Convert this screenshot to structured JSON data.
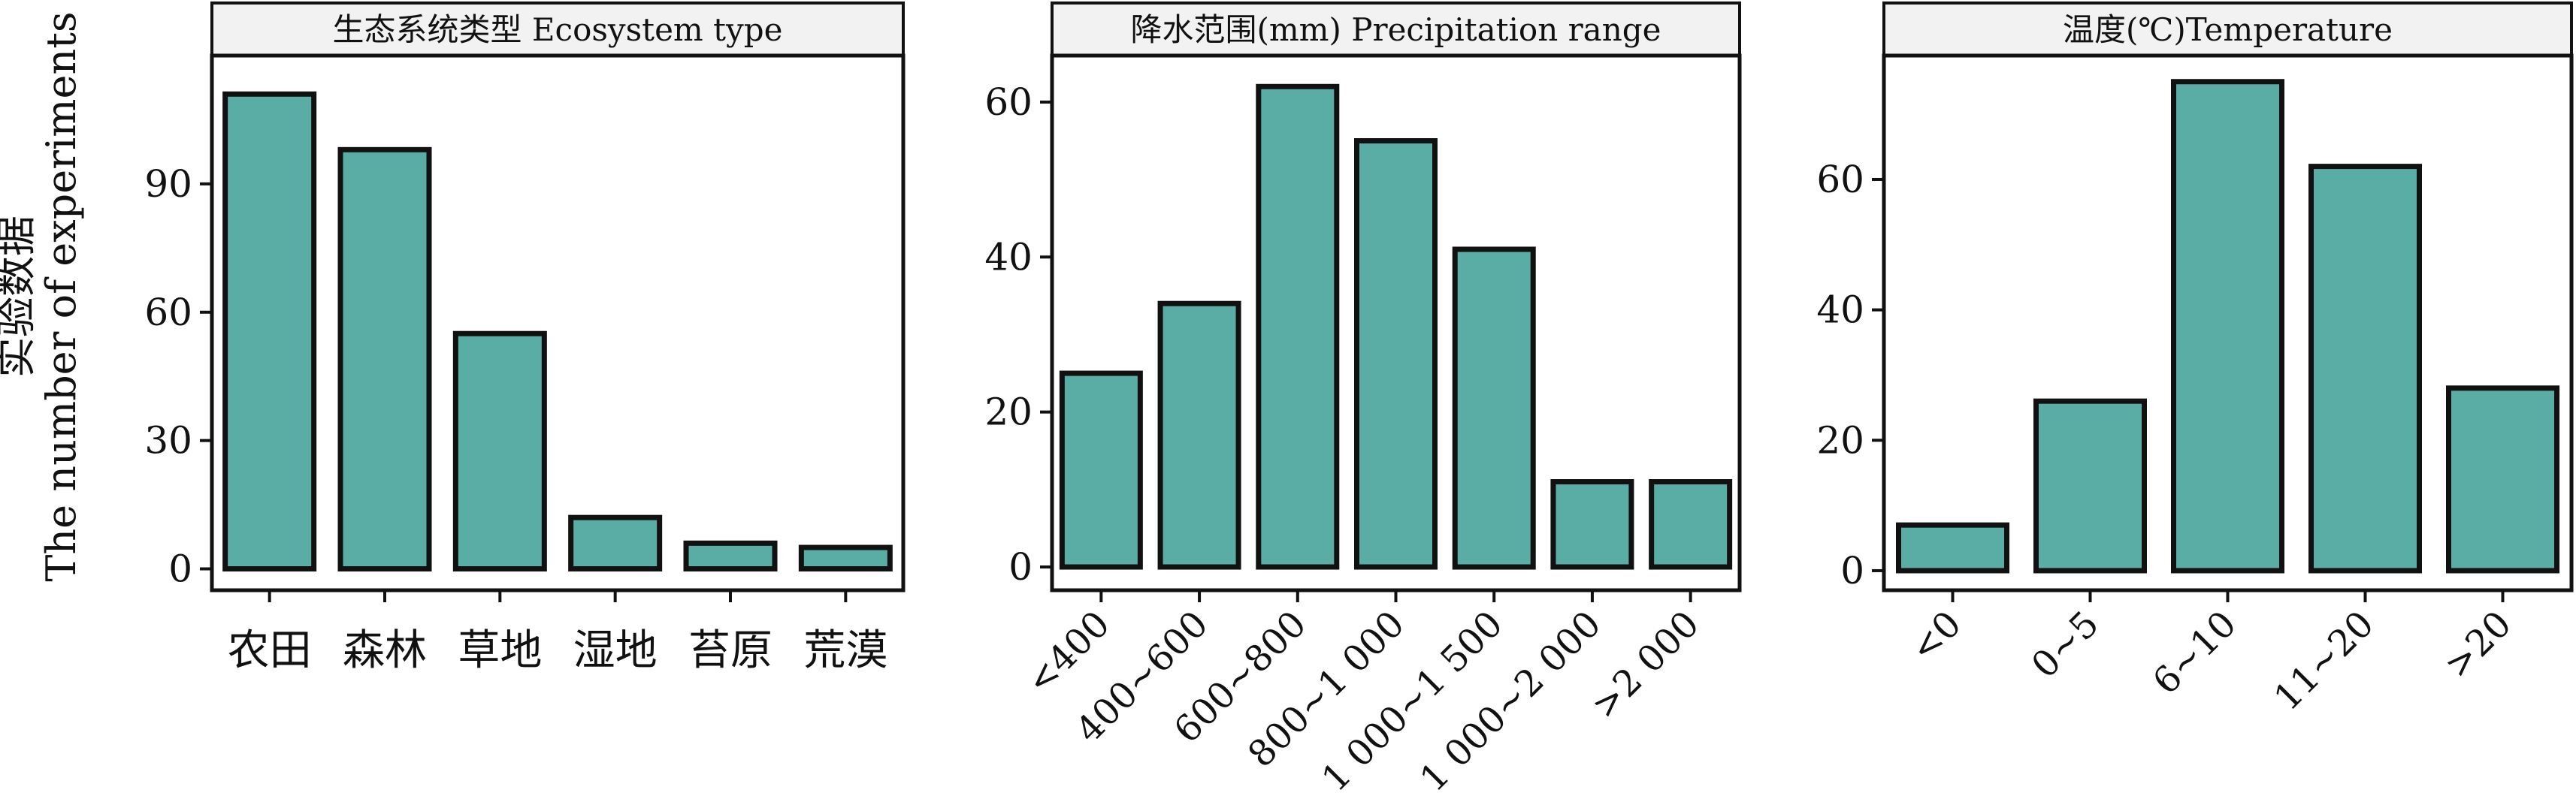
{
  "y_axis_label": {
    "zh": "实验数据",
    "en": "The number of experiments"
  },
  "colors": {
    "bar_fill": "#5aada5",
    "bar_stroke": "#111111",
    "header_fill": "#f2f2f2",
    "axis": "#111111"
  },
  "chart_data": [
    {
      "type": "bar",
      "title": "生态系统类型 Ecosystem type",
      "xlabel": "",
      "ylabel": "实验数据 The number of experiments",
      "categories": [
        "农田",
        "森林",
        "草地",
        "湿地",
        "苔原",
        "荒漠"
      ],
      "values": [
        111,
        98,
        55,
        12,
        6,
        5
      ],
      "ylim": [
        -5,
        120
      ],
      "yticks": [
        0,
        30,
        60,
        90
      ],
      "ytick_labels": [
        "0",
        "30",
        "60",
        "90"
      ],
      "xtick_rotation": 0
    },
    {
      "type": "bar",
      "title": "降水范围(mm) Precipitation range",
      "xlabel": "",
      "ylabel": "",
      "categories": [
        "<400",
        "400~600",
        "600~800",
        "800~1 000",
        "1 000~1 500",
        "1 000~2 000",
        ">2 000"
      ],
      "values": [
        25,
        34,
        62,
        55,
        41,
        11,
        11
      ],
      "ylim": [
        -3,
        66
      ],
      "yticks": [
        0,
        20,
        40,
        60
      ],
      "ytick_labels": [
        "0",
        "20",
        "40",
        "60"
      ],
      "xtick_rotation": -45
    },
    {
      "type": "bar",
      "title": "温度(℃)Temperature",
      "xlabel": "",
      "ylabel": "",
      "categories": [
        "<0",
        "0~5",
        "6~10",
        "11~20",
        ">20"
      ],
      "values": [
        7,
        26,
        75,
        62,
        28
      ],
      "ylim": [
        -3,
        79
      ],
      "yticks": [
        0,
        20,
        40,
        60
      ],
      "ytick_labels": [
        "0",
        "20",
        "40",
        "60"
      ],
      "xtick_rotation": -45
    }
  ]
}
